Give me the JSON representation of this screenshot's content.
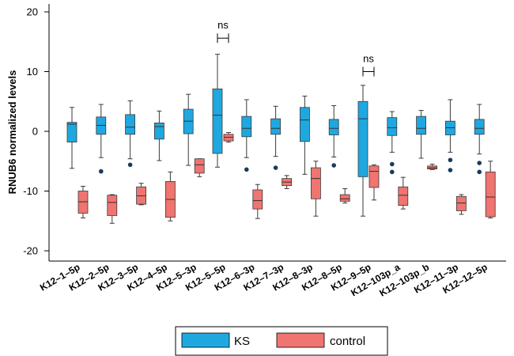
{
  "chart_data": {
    "type": "boxplot",
    "ylabel": "RNUB6 normalized levels",
    "xlabel": "",
    "ylim": [
      -22,
      22
    ],
    "yticks": [
      -20,
      -10,
      0,
      10,
      20
    ],
    "grid": false,
    "legend_position": "bottom-center",
    "categories": [
      "K12–1–5p",
      "K12–2–5p",
      "K12–3–5p",
      "K12–4–5p",
      "K12–5–3p",
      "K12–5–5p",
      "K12–6–3p",
      "K12–7–3p",
      "K12–8–3p",
      "K12–8–5p",
      "K12–9–5p",
      "K12–103p_a",
      "K12–103p_b",
      "K12–11–3p",
      "K12–12–5p"
    ],
    "series": [
      {
        "name": "KS",
        "color": "#1fa8e0",
        "boxes": [
          {
            "whislo": -6.2,
            "q1": -1.8,
            "med": 1.2,
            "q3": 1.5,
            "whishi": 4.0,
            "fliers": []
          },
          {
            "whislo": -4.4,
            "q1": -0.5,
            "med": 1.0,
            "q3": 2.4,
            "whishi": 4.5,
            "fliers": [
              -6.7
            ]
          },
          {
            "whislo": -4.6,
            "q1": -0.5,
            "med": 0.7,
            "q3": 2.8,
            "whishi": 5.1,
            "fliers": [
              -5.6
            ]
          },
          {
            "whislo": -4.9,
            "q1": -1.3,
            "med": 0.8,
            "q3": 1.4,
            "whishi": 3.4,
            "fliers": []
          },
          {
            "whislo": -5.7,
            "q1": -0.4,
            "med": 1.7,
            "q3": 3.7,
            "whishi": 6.2,
            "fliers": []
          },
          {
            "whislo": -6.0,
            "q1": -3.7,
            "med": 2.7,
            "q3": 7.1,
            "whishi": 12.9,
            "fliers": []
          },
          {
            "whislo": -4.4,
            "q1": -0.9,
            "med": 0.5,
            "q3": 2.5,
            "whishi": 5.3,
            "fliers": [
              -6.4
            ]
          },
          {
            "whislo": -4.2,
            "q1": -0.5,
            "med": 0.5,
            "q3": 2.1,
            "whishi": 4.2,
            "fliers": [
              -6.1
            ]
          },
          {
            "whislo": -7.2,
            "q1": -1.7,
            "med": 1.9,
            "q3": 4.0,
            "whishi": 5.9,
            "fliers": []
          },
          {
            "whislo": -4.3,
            "q1": -0.6,
            "med": 0.5,
            "q3": 2.0,
            "whishi": 4.3,
            "fliers": [
              -5.7
            ]
          },
          {
            "whislo": -14.2,
            "q1": -7.6,
            "med": 2.1,
            "q3": 5.0,
            "whishi": 7.7,
            "fliers": []
          },
          {
            "whislo": -3.5,
            "q1": -0.7,
            "med": 0.6,
            "q3": 2.3,
            "whishi": 3.3,
            "fliers": [
              -5.5,
              -6.8
            ]
          },
          {
            "whislo": -4.5,
            "q1": -0.5,
            "med": 0.5,
            "q3": 2.5,
            "whishi": 3.5,
            "fliers": []
          },
          {
            "whislo": -3.5,
            "q1": -0.6,
            "med": 0.6,
            "q3": 1.7,
            "whishi": 5.3,
            "fliers": [
              -4.8,
              -6.5
            ]
          },
          {
            "whislo": -3.8,
            "q1": -0.5,
            "med": 0.5,
            "q3": 2.0,
            "whishi": 4.5,
            "fliers": [
              -5.3,
              -6.8
            ]
          }
        ]
      },
      {
        "name": "control",
        "color": "#f07470",
        "boxes": [
          {
            "whislo": -14.5,
            "q1": -13.7,
            "med": -11.8,
            "q3": -10.0,
            "whishi": -9.2,
            "fliers": []
          },
          {
            "whislo": -15.4,
            "q1": -14.1,
            "med": -11.9,
            "q3": -10.7,
            "whishi": -10.6,
            "fliers": []
          },
          {
            "whislo": -12.3,
            "q1": -12.2,
            "med": -10.8,
            "q3": -9.3,
            "whishi": -8.7,
            "fliers": []
          },
          {
            "whislo": -15.0,
            "q1": -14.4,
            "med": -11.4,
            "q3": -8.4,
            "whishi": -6.8,
            "fliers": []
          },
          {
            "whislo": -7.6,
            "q1": -7.0,
            "med": -5.6,
            "q3": -4.6,
            "whishi": -4.6,
            "fliers": []
          },
          {
            "whislo": -1.8,
            "q1": -1.6,
            "med": -1.0,
            "q3": -0.5,
            "whishi": -0.2,
            "fliers": []
          },
          {
            "whislo": -14.6,
            "q1": -13.0,
            "med": -11.6,
            "q3": -9.8,
            "whishi": -8.9,
            "fliers": []
          },
          {
            "whislo": -9.6,
            "q1": -9.1,
            "med": -8.5,
            "q3": -7.9,
            "whishi": -7.4,
            "fliers": []
          },
          {
            "whislo": -14.2,
            "q1": -11.3,
            "med": -7.9,
            "q3": -6.1,
            "whishi": -5.0,
            "fliers": []
          },
          {
            "whislo": -12.0,
            "q1": -11.7,
            "med": -11.3,
            "q3": -10.6,
            "whishi": -9.6,
            "fliers": []
          },
          {
            "whislo": -11.5,
            "q1": -9.4,
            "med": -6.7,
            "q3": -5.8,
            "whishi": -5.6,
            "fliers": []
          },
          {
            "whislo": -13.0,
            "q1": -12.4,
            "med": -10.7,
            "q3": -9.3,
            "whishi": -7.7,
            "fliers": []
          },
          {
            "whislo": -6.4,
            "q1": -6.3,
            "med": -6.1,
            "q3": -5.8,
            "whishi": -5.5,
            "fliers": []
          },
          {
            "whislo": -13.9,
            "q1": -13.3,
            "med": -12.0,
            "q3": -10.9,
            "whishi": -10.6,
            "fliers": []
          },
          {
            "whislo": -14.5,
            "q1": -14.3,
            "med": -11.0,
            "q3": -6.8,
            "whishi": -5.0,
            "fliers": []
          }
        ]
      }
    ],
    "annotations": [
      {
        "text": "ns",
        "category": "K12–5–5p",
        "value": 15.6
      },
      {
        "text": "ns",
        "category": "K12–9–5p",
        "value": 10.0
      }
    ]
  }
}
